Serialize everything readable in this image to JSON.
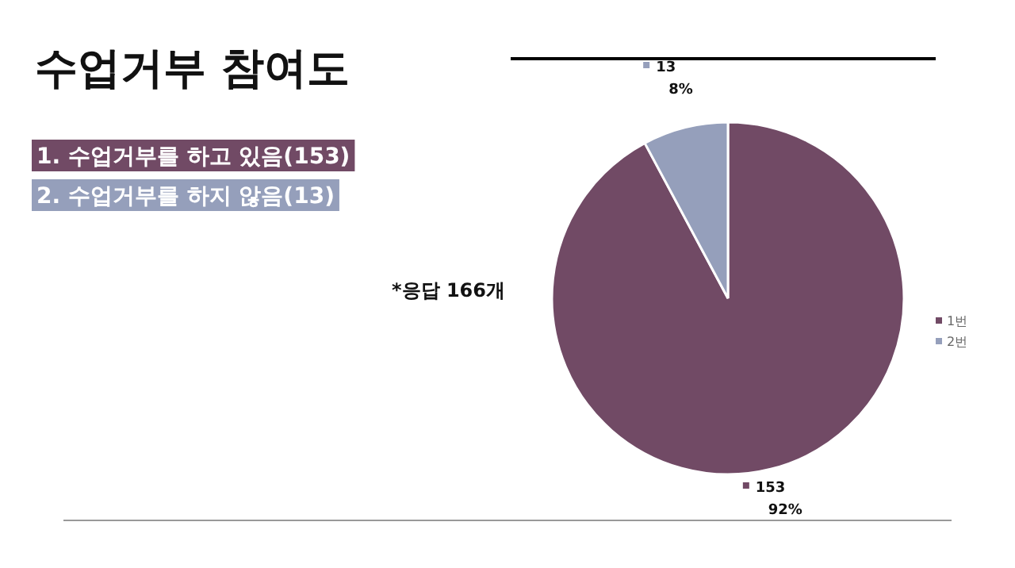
{
  "chart_data": {
    "type": "pie",
    "title": "수업거부 참여도",
    "categories": [
      "1번",
      "2번"
    ],
    "values": [
      153,
      13
    ],
    "colors": [
      "#714a65",
      "#959fbb"
    ],
    "value_labels": [
      "153\n92%",
      "13\n8%"
    ],
    "legend": "right",
    "annotations": [
      "1. 수업거부를 하고 있음(153)",
      "2. 수업거부를 하지 않음(13)",
      "*응답 166개"
    ]
  }
}
